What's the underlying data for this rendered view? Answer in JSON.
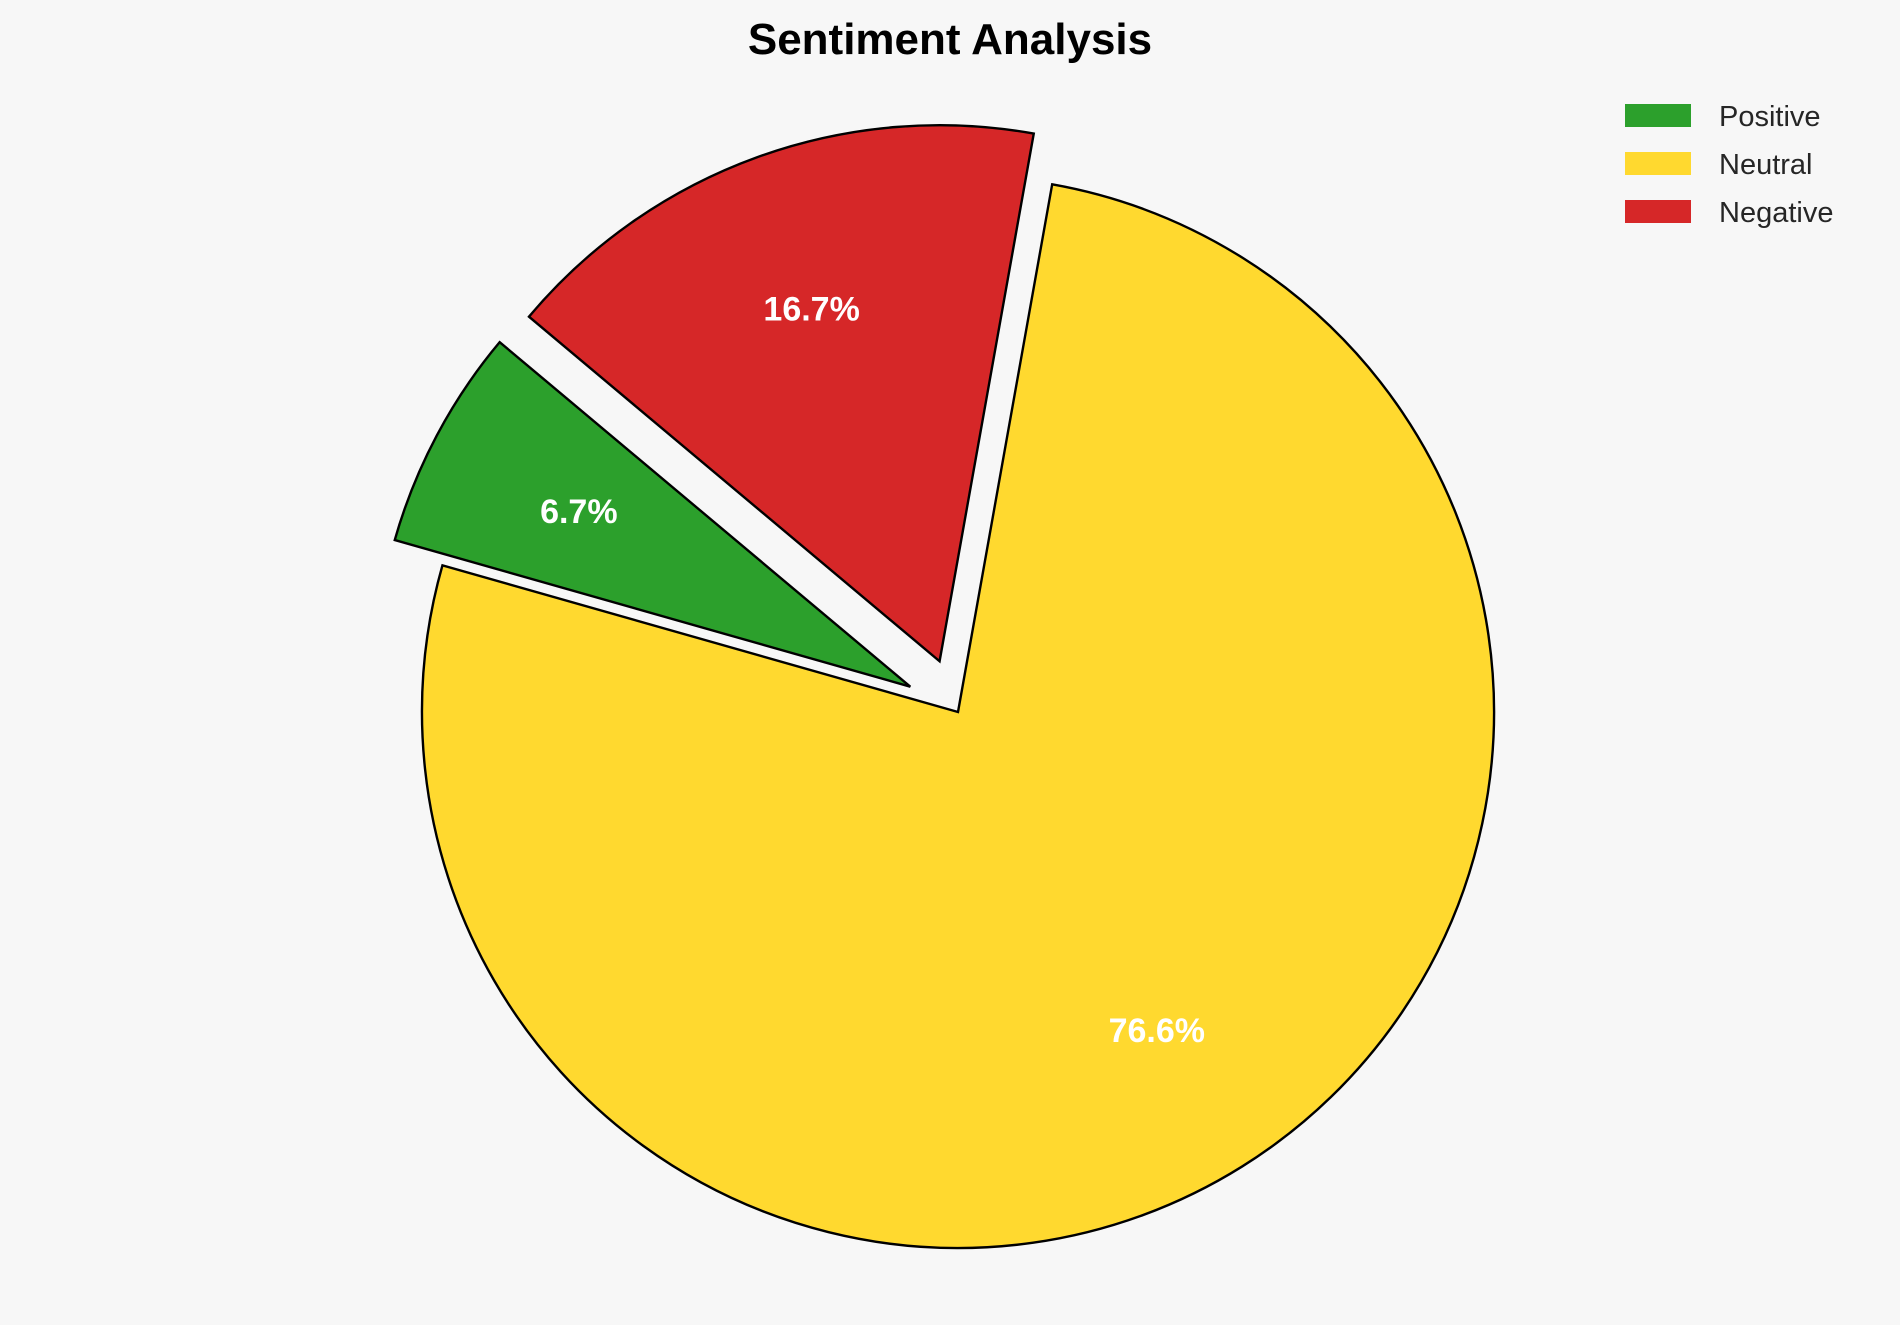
{
  "chart_data": {
    "type": "pie",
    "title": "Sentiment Analysis",
    "categories": [
      "Positive",
      "Neutral",
      "Negative"
    ],
    "values": [
      6.7,
      76.6,
      16.7
    ],
    "labels": [
      "6.7%",
      "76.6%",
      "16.7%"
    ],
    "colors": [
      "#2ca02c",
      "#ffd92f",
      "#d62728"
    ],
    "exploded": [
      true,
      false,
      true
    ],
    "start_angle_deg": 140,
    "direction": "counterclockwise",
    "legend_position": "top-right",
    "edge_color": "#000000"
  }
}
